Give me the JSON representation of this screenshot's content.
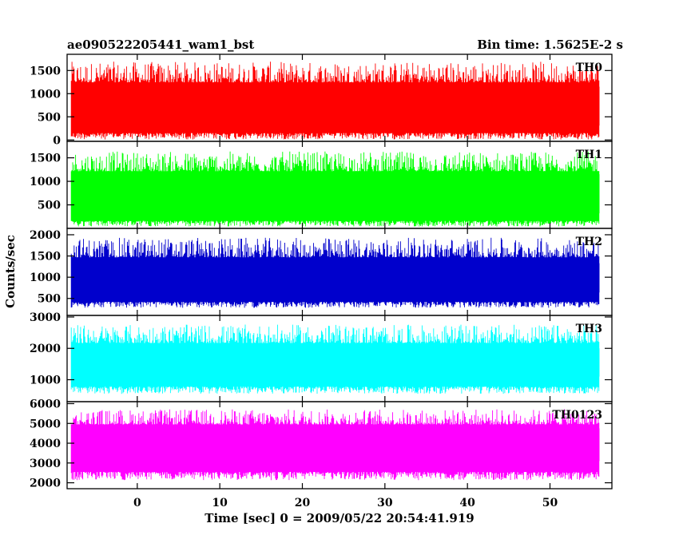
{
  "header": {
    "left_title": "ae090522205441_wam1_bst",
    "right_title": "Bin time: 1.5625E-2 s"
  },
  "chart_data": {
    "type": "line",
    "xlabel": "Time [sec] 0 = 2009/05/22 20:54:41.919",
    "ylabel": "Counts/sec",
    "xlim": [
      -8.5,
      57.5
    ],
    "data_x_range": [
      -8,
      56
    ],
    "xticks": [
      0,
      10,
      20,
      30,
      40,
      50
    ],
    "grid": false,
    "panels": [
      {
        "name": "TH0",
        "color": "#ff0000",
        "ylim": [
          -30,
          1850
        ],
        "yticks": [
          0,
          500,
          1000,
          1500
        ],
        "band": {
          "low_mean": 150,
          "low_jitter": 140,
          "core_low": 310,
          "core_high": 1150,
          "high_mean": 1420,
          "high_jitter": 320
        }
      },
      {
        "name": "TH1",
        "color": "#00ff00",
        "ylim": [
          0,
          1850
        ],
        "yticks": [
          500,
          1000,
          1500
        ],
        "band": {
          "low_mean": 160,
          "low_jitter": 120,
          "core_low": 320,
          "core_high": 1150,
          "high_mean": 1380,
          "high_jitter": 300
        }
      },
      {
        "name": "TH2",
        "color": "#0000cc",
        "ylim": [
          100,
          2150
        ],
        "yticks": [
          500,
          1000,
          1500,
          2000
        ],
        "band": {
          "low_mean": 420,
          "low_jitter": 140,
          "core_low": 640,
          "core_high": 1330,
          "high_mean": 1650,
          "high_jitter": 330
        }
      },
      {
        "name": "TH3",
        "color": "#00ffff",
        "ylim": [
          300,
          3050
        ],
        "yticks": [
          1000,
          2000,
          3000
        ],
        "band": {
          "low_mean": 780,
          "low_jitter": 230,
          "core_low": 1100,
          "core_high": 2000,
          "high_mean": 2400,
          "high_jitter": 420
        }
      },
      {
        "name": "TH0123",
        "color": "#ff00ff",
        "ylim": [
          1700,
          6100
        ],
        "yticks": [
          2000,
          3000,
          4000,
          5000,
          6000
        ],
        "band": {
          "low_mean": 2550,
          "low_jitter": 420,
          "core_low": 3100,
          "core_high": 4750,
          "high_mean": 5250,
          "high_jitter": 550
        }
      }
    ]
  }
}
